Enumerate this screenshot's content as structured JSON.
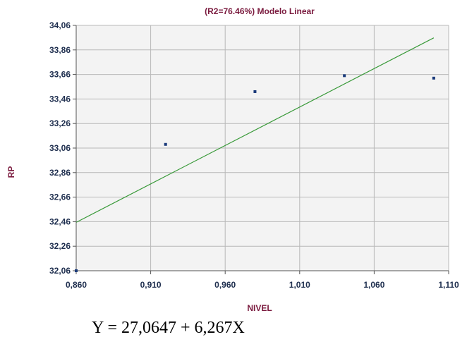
{
  "chart_data": {
    "type": "scatter",
    "title": "(R2=76.46%) Modelo  Linear",
    "xlabel": "NIVEL",
    "ylabel": "RP",
    "xlim": [
      0.86,
      1.11
    ],
    "ylim": [
      32.06,
      34.06
    ],
    "x_ticks": [
      0.86,
      0.91,
      0.96,
      1.01,
      1.06,
      1.11
    ],
    "x_tick_labels": [
      "0,860",
      "0,910",
      "0,960",
      "1,010",
      "1,060",
      "1,110"
    ],
    "y_ticks": [
      32.06,
      32.26,
      32.46,
      32.66,
      32.86,
      33.06,
      33.26,
      33.46,
      33.66,
      33.86,
      34.06
    ],
    "y_tick_labels": [
      "32,06",
      "32,26",
      "32,46",
      "32,66",
      "32,86",
      "33,06",
      "33,26",
      "33,46",
      "33,66",
      "33,86",
      "34,06"
    ],
    "grid": true,
    "points": [
      {
        "x": 0.86,
        "y": 32.06
      },
      {
        "x": 0.92,
        "y": 33.09
      },
      {
        "x": 0.98,
        "y": 33.52
      },
      {
        "x": 1.04,
        "y": 33.65
      },
      {
        "x": 1.1,
        "y": 33.63
      }
    ],
    "fit_line": {
      "intercept": 27.0647,
      "slope": 6.267,
      "x_range": [
        0.86,
        1.1
      ]
    },
    "point_color": "#1a3a7a",
    "line_color": "#3a9a3a",
    "plot_background": "#f3f3f3",
    "grid_color": "#b8b8b8"
  },
  "equation_text": "Y = 27,0647 + 6,267X"
}
